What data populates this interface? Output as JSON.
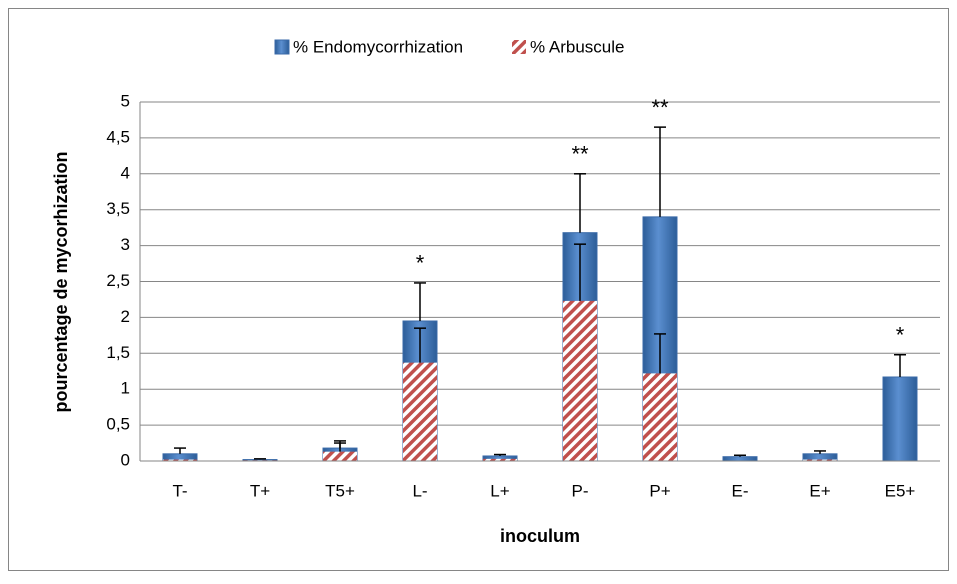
{
  "chart_data": {
    "type": "bar",
    "overlap": true,
    "x_label": "inoculum",
    "y_label": "pourcentage de mycorhization",
    "categories": [
      "T-",
      "T+",
      "T5+",
      "L-",
      "L+",
      "P-",
      "P+",
      "E-",
      "E+",
      "E5+"
    ],
    "series": [
      {
        "name": "% Endomycorrhization",
        "color": "#4f81bd",
        "pattern": "solid",
        "values": [
          0.1,
          0.02,
          0.18,
          1.95,
          0.07,
          3.18,
          3.4,
          0.06,
          0.1,
          1.17
        ],
        "errors": [
          0.08,
          0.01,
          0.1,
          0.53,
          0.02,
          0.82,
          1.25,
          0.02,
          0.04,
          0.31
        ]
      },
      {
        "name": "% Arbuscule",
        "color": "#c0504d",
        "pattern": "hatch",
        "values": [
          0.02,
          0.01,
          0.13,
          1.37,
          0.03,
          2.23,
          1.22,
          0,
          0.02,
          0
        ],
        "errors": [
          0,
          0,
          0.12,
          0.48,
          0,
          0.79,
          0.55,
          0,
          0,
          0
        ]
      }
    ],
    "significance": [
      null,
      null,
      null,
      "*",
      null,
      "**",
      "**",
      null,
      null,
      "*"
    ],
    "ylim": [
      0,
      5
    ],
    "yticks": [
      0,
      {
        "value": 0.5,
        "label": "0,5"
      },
      1,
      {
        "value": 1.5,
        "label": "1,5"
      },
      2,
      {
        "value": 2.5,
        "label": "2,5"
      },
      3,
      {
        "value": 3.5,
        "label": "3,5"
      },
      4,
      {
        "value": 4.5,
        "label": "4,5"
      },
      5
    ],
    "grid": true,
    "legend": "top"
  }
}
